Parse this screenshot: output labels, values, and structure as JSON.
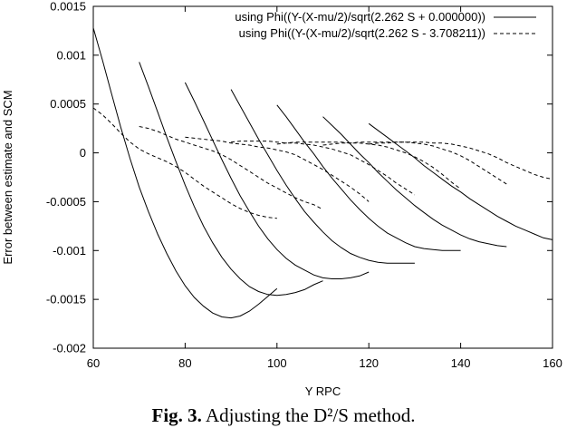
{
  "caption": {
    "label": "Fig. 3.",
    "text": "Adjusting the D²/S method."
  },
  "chart_data": {
    "type": "line",
    "title": "",
    "xlabel": "Y RPC",
    "ylabel": "Error between estimate and SCM",
    "xlim": [
      60,
      160
    ],
    "ylim": [
      -0.002,
      0.0015
    ],
    "x_ticks": [
      "60",
      "80",
      "100",
      "120",
      "140",
      "160"
    ],
    "y_ticks": [
      "-0.002",
      "-0.0015",
      "-0.001",
      "-0.0005",
      "0",
      "0.0005",
      "0.001",
      "0.0015"
    ],
    "grid": false,
    "legend_position": "top-right",
    "series": [
      {
        "name": "using Phi((Y-(X-mu/2)/sqrt(2.262 S + 0.000000))",
        "style": "solid",
        "curves": [
          {
            "x": [
              60,
              62,
              64,
              66,
              68,
              70,
              72,
              74,
              76,
              78,
              80,
              82,
              84,
              86,
              88,
              90,
              92,
              94,
              96,
              98,
              100
            ],
            "y": [
              0.00128,
              0.00095,
              0.0006,
              0.00026,
              -6e-05,
              -0.00035,
              -0.0006,
              -0.00083,
              -0.00103,
              -0.00121,
              -0.00136,
              -0.00148,
              -0.00157,
              -0.00164,
              -0.00168,
              -0.00169,
              -0.00167,
              -0.00162,
              -0.00155,
              -0.00147,
              -0.00139
            ]
          },
          {
            "x": [
              70,
              72,
              74,
              76,
              78,
              80,
              82,
              84,
              86,
              88,
              90,
              92,
              94,
              96,
              98,
              100,
              102,
              104,
              106,
              108,
              110
            ],
            "y": [
              0.00093,
              0.00068,
              0.00042,
              0.00016,
              -9e-05,
              -0.00033,
              -0.00055,
              -0.00075,
              -0.00092,
              -0.00107,
              -0.00119,
              -0.00129,
              -0.00137,
              -0.00142,
              -0.00145,
              -0.00146,
              -0.00145,
              -0.00143,
              -0.0014,
              -0.00135,
              -0.00131
            ]
          },
          {
            "x": [
              80,
              82,
              84,
              86,
              88,
              90,
              92,
              94,
              96,
              98,
              100,
              102,
              104,
              106,
              108,
              110,
              112,
              114,
              116,
              118,
              120
            ],
            "y": [
              0.00072,
              0.00053,
              0.00033,
              0.00013,
              -7e-05,
              -0.00026,
              -0.00044,
              -0.0006,
              -0.00075,
              -0.00088,
              -0.00099,
              -0.00108,
              -0.00115,
              -0.0012,
              -0.00125,
              -0.00128,
              -0.00129,
              -0.00129,
              -0.00128,
              -0.00126,
              -0.00122
            ]
          },
          {
            "x": [
              90,
              92,
              94,
              96,
              98,
              100,
              102,
              104,
              106,
              108,
              110,
              112,
              114,
              116,
              118,
              120,
              122,
              124,
              126,
              128,
              130
            ],
            "y": [
              0.00065,
              0.00048,
              0.00031,
              0.00014,
              -2e-05,
              -0.00018,
              -0.00033,
              -0.00047,
              -0.0006,
              -0.00071,
              -0.00081,
              -0.0009,
              -0.00097,
              -0.00103,
              -0.00107,
              -0.0011,
              -0.00112,
              -0.00113,
              -0.00113,
              -0.00113,
              -0.00113
            ]
          },
          {
            "x": [
              100,
              102,
              104,
              106,
              108,
              110,
              112,
              114,
              116,
              118,
              120,
              122,
              124,
              126,
              128,
              130,
              132,
              134,
              136,
              138,
              140
            ],
            "y": [
              0.00049,
              0.00037,
              0.00024,
              0.00011,
              -1e-05,
              -0.00014,
              -0.00026,
              -0.00037,
              -0.00048,
              -0.00058,
              -0.00067,
              -0.00075,
              -0.00082,
              -0.00087,
              -0.00092,
              -0.00096,
              -0.00098,
              -0.00099,
              -0.001,
              -0.001,
              -0.001
            ]
          },
          {
            "x": [
              110,
              112,
              114,
              116,
              118,
              120,
              122,
              124,
              126,
              128,
              130,
              132,
              134,
              136,
              138,
              140,
              142,
              144,
              146,
              148,
              150
            ],
            "y": [
              0.00037,
              0.00028,
              0.00019,
              9e-05,
              -1e-05,
              -0.0001,
              -0.0002,
              -0.00029,
              -0.00038,
              -0.00046,
              -0.00054,
              -0.00061,
              -0.00068,
              -0.00074,
              -0.00079,
              -0.00084,
              -0.00088,
              -0.00091,
              -0.00093,
              -0.00095,
              -0.00096
            ]
          },
          {
            "x": [
              120,
              122,
              124,
              126,
              128,
              130,
              132,
              134,
              136,
              138,
              140,
              142,
              144,
              146,
              148,
              150,
              152,
              154,
              156,
              158,
              160
            ],
            "y": [
              0.0003,
              0.00023,
              0.00016,
              9e-05,
              2e-05,
              -5e-05,
              -0.00013,
              -0.0002,
              -0.00027,
              -0.00034,
              -0.0004,
              -0.00047,
              -0.00053,
              -0.00059,
              -0.00065,
              -0.0007,
              -0.00075,
              -0.00079,
              -0.00083,
              -0.00087,
              -0.00089
            ]
          }
        ]
      },
      {
        "name": "using Phi((Y-(X-mu/2)/sqrt(2.262 S - 3.708211))",
        "style": "dashed",
        "curves": [
          {
            "x": [
              60,
              62,
              64,
              66,
              68,
              70,
              72,
              74,
              76,
              78,
              80,
              82,
              84,
              86,
              88,
              90,
              92,
              94,
              96,
              98,
              100
            ],
            "y": [
              0.00046,
              0.00039,
              0.0003,
              0.0002,
              0.00011,
              4e-05,
              -1e-05,
              -5e-05,
              -9e-05,
              -0.00014,
              -0.0002,
              -0.00027,
              -0.00034,
              -0.0004,
              -0.00046,
              -0.00052,
              -0.00057,
              -0.00061,
              -0.00064,
              -0.00066,
              -0.00067
            ]
          },
          {
            "x": [
              70,
              72,
              74,
              76,
              78,
              80,
              82,
              84,
              86,
              88,
              90,
              92,
              94,
              96,
              98,
              100,
              102,
              104,
              106,
              108,
              110
            ],
            "y": [
              0.00027,
              0.00025,
              0.00022,
              0.00018,
              0.00014,
              0.00011,
              8e-05,
              5e-05,
              2e-05,
              -2e-05,
              -7e-05,
              -0.00013,
              -0.00019,
              -0.00025,
              -0.00031,
              -0.00036,
              -0.00041,
              -0.00046,
              -0.0005,
              -0.00053,
              -0.00058
            ]
          },
          {
            "x": [
              80,
              82,
              84,
              86,
              88,
              90,
              92,
              94,
              96,
              98,
              100,
              102,
              104,
              106,
              108,
              110,
              112,
              114,
              116,
              118,
              120
            ],
            "y": [
              0.00016,
              0.00015,
              0.00014,
              0.00013,
              0.00012,
              0.0001,
              9e-05,
              8e-05,
              6e-05,
              5e-05,
              3e-05,
              1e-05,
              -2e-05,
              -7e-05,
              -0.00012,
              -0.00017,
              -0.00023,
              -0.00029,
              -0.00035,
              -0.00042,
              -0.0005
            ]
          },
          {
            "x": [
              90,
              92,
              94,
              96,
              98,
              100,
              102,
              104,
              106,
              108,
              110,
              112,
              114,
              116,
              118,
              120,
              122,
              124,
              126,
              128,
              130
            ],
            "y": [
              0.00011,
              0.00012,
              0.00012,
              0.00012,
              0.00012,
              0.00011,
              0.0001,
              0.0001,
              9e-05,
              8e-05,
              6e-05,
              4e-05,
              1e-05,
              -2e-05,
              -7e-05,
              -0.00012,
              -0.00018,
              -0.00024,
              -0.00031,
              -0.00037,
              -0.00043
            ]
          },
          {
            "x": [
              100,
              102,
              104,
              106,
              108,
              110,
              112,
              114,
              116,
              118,
              120,
              122,
              124,
              126,
              128,
              130,
              132,
              134,
              136,
              138,
              140
            ],
            "y": [
              9e-05,
              0.0001,
              0.00011,
              0.00011,
              0.00011,
              0.00011,
              0.00011,
              0.00011,
              0.0001,
              0.0001,
              9e-05,
              8e-05,
              6e-05,
              3e-05,
              0,
              -4e-05,
              -9e-05,
              -0.00015,
              -0.00022,
              -0.0003,
              -0.00037
            ]
          },
          {
            "x": [
              110,
              112,
              114,
              116,
              118,
              120,
              122,
              124,
              126,
              128,
              130,
              132,
              134,
              136,
              138,
              140,
              142,
              144,
              146,
              148,
              150
            ],
            "y": [
              8e-05,
              9e-05,
              0.0001,
              0.0001,
              0.00011,
              0.00011,
              0.00011,
              0.00011,
              0.00011,
              0.00011,
              0.0001,
              9e-05,
              7e-05,
              4e-05,
              1e-05,
              -3e-05,
              -8e-05,
              -0.00014,
              -0.0002,
              -0.00026,
              -0.00032
            ]
          },
          {
            "x": [
              120,
              122,
              124,
              126,
              128,
              130,
              132,
              134,
              136,
              138,
              140,
              142,
              144,
              146,
              148,
              150,
              152,
              154,
              156,
              158,
              160
            ],
            "y": [
              9e-05,
              0.0001,
              0.0001,
              0.00011,
              0.00011,
              0.00011,
              0.00011,
              0.0001,
              0.0001,
              9e-05,
              7e-05,
              5e-05,
              2e-05,
              -1e-05,
              -5e-05,
              -0.0001,
              -0.00014,
              -0.00018,
              -0.00022,
              -0.00025,
              -0.00027
            ]
          }
        ]
      }
    ]
  }
}
